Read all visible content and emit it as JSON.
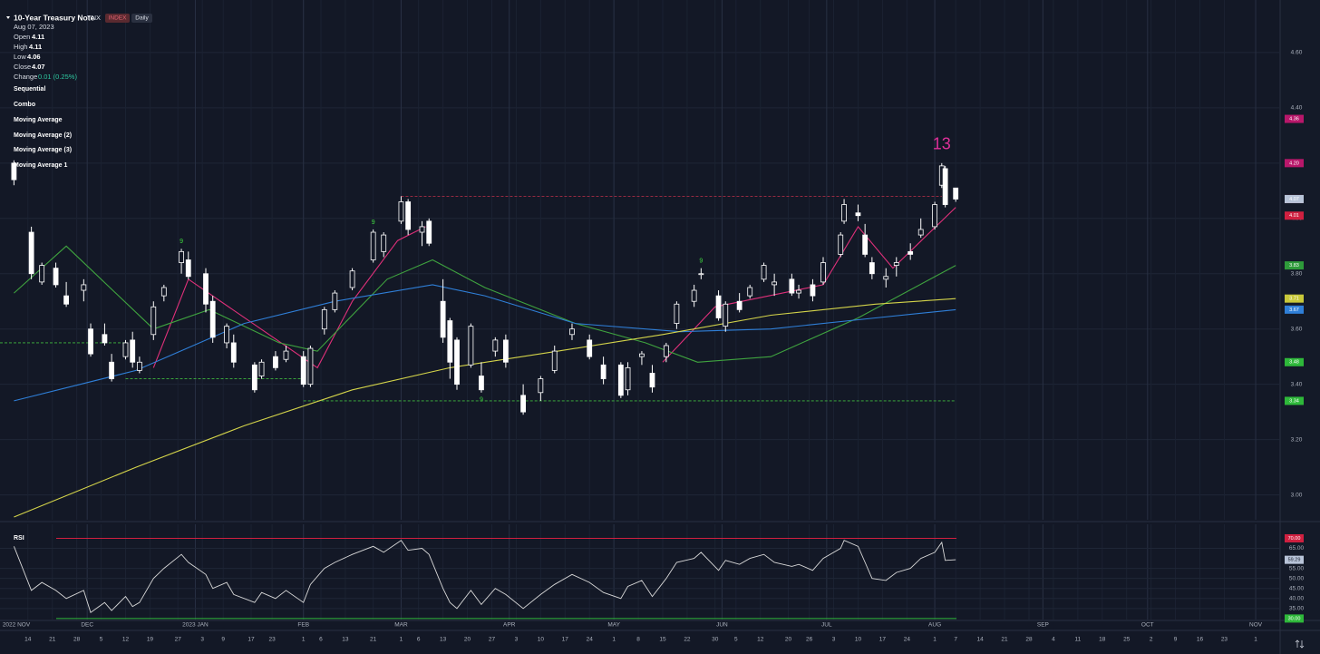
{
  "chart_data": {
    "type": "candlestick",
    "title": "10-Year Treasury Note",
    "symbol": "TNX",
    "badges": [
      "INDEX",
      "Daily"
    ],
    "legend": {
      "date": "Aug 07, 2023",
      "fields": [
        "Open",
        "High",
        "Low",
        "Close",
        "Change"
      ],
      "change": "0.01 (0.25%)"
    },
    "indicators": [
      "Sequential",
      "Combo",
      "Moving Average",
      "Moving Average (2)",
      "Moving Average (3)",
      "Moving Average 1"
    ],
    "xlim": [
      "2022-11-06",
      "2023-11-08"
    ],
    "ylim": [
      2.91,
      4.79
    ],
    "yticks": [
      {
        "value": 3.0,
        "label": "3.00"
      },
      {
        "value": 3.2,
        "label": "3.20"
      },
      {
        "value": 3.4,
        "label": "3.40"
      },
      {
        "value": 3.6,
        "label": "3.60"
      },
      {
        "value": 3.8,
        "label": "3.80"
      },
      {
        "value": 4.0,
        "label": "4.00"
      },
      {
        "value": 4.2,
        "label": "4.20"
      },
      {
        "value": 4.4,
        "label": "4.40"
      },
      {
        "value": 4.6,
        "label": "4.60"
      }
    ],
    "xticks": [
      {
        "value": "2022-11-14",
        "label": "14"
      },
      {
        "value": "2022-11-21",
        "label": "21"
      },
      {
        "value": "2022-11-28",
        "label": "28"
      },
      {
        "value": "2022-12-05",
        "label": "5"
      },
      {
        "value": "2022-12-12",
        "label": "12"
      },
      {
        "value": "2022-12-19",
        "label": "19"
      },
      {
        "value": "2022-12-27",
        "label": "27"
      },
      {
        "value": "2023-01-03",
        "label": "3"
      },
      {
        "value": "2023-01-09",
        "label": "9"
      },
      {
        "value": "2023-01-17",
        "label": "17"
      },
      {
        "value": "2023-01-23",
        "label": "23"
      },
      {
        "value": "2023-02-01",
        "label": "1"
      },
      {
        "value": "2023-02-06",
        "label": "6"
      },
      {
        "value": "2023-02-13",
        "label": "13"
      },
      {
        "value": "2023-02-21",
        "label": "21"
      },
      {
        "value": "2023-03-01",
        "label": "1"
      },
      {
        "value": "2023-03-06",
        "label": "6"
      },
      {
        "value": "2023-03-13",
        "label": "13"
      },
      {
        "value": "2023-03-20",
        "label": "20"
      },
      {
        "value": "2023-03-27",
        "label": "27"
      },
      {
        "value": "2023-04-03",
        "label": "3"
      },
      {
        "value": "2023-04-10",
        "label": "10"
      },
      {
        "value": "2023-04-17",
        "label": "17"
      },
      {
        "value": "2023-04-24",
        "label": "24"
      },
      {
        "value": "2023-05-01",
        "label": "1"
      },
      {
        "value": "2023-05-08",
        "label": "8"
      },
      {
        "value": "2023-05-15",
        "label": "15"
      },
      {
        "value": "2023-05-22",
        "label": "22"
      },
      {
        "value": "2023-05-30",
        "label": "30"
      },
      {
        "value": "2023-06-05",
        "label": "5"
      },
      {
        "value": "2023-06-12",
        "label": "12"
      },
      {
        "value": "2023-06-20",
        "label": "20"
      },
      {
        "value": "2023-06-26",
        "label": "26"
      },
      {
        "value": "2023-07-03",
        "label": "3"
      },
      {
        "value": "2023-07-10",
        "label": "10"
      },
      {
        "value": "2023-07-17",
        "label": "17"
      },
      {
        "value": "2023-07-24",
        "label": "24"
      },
      {
        "value": "2023-08-01",
        "label": "1"
      },
      {
        "value": "2023-08-07",
        "label": "7"
      },
      {
        "value": "2023-08-14",
        "label": "14"
      },
      {
        "value": "2023-08-21",
        "label": "21"
      },
      {
        "value": "2023-08-28",
        "label": "28"
      },
      {
        "value": "2023-09-04",
        "label": "4"
      },
      {
        "value": "2023-09-11",
        "label": "11"
      },
      {
        "value": "2023-09-18",
        "label": "18"
      },
      {
        "value": "2023-09-25",
        "label": "25"
      },
      {
        "value": "2023-10-02",
        "label": "2"
      },
      {
        "value": "2023-10-09",
        "label": "9"
      },
      {
        "value": "2023-10-16",
        "label": "16"
      },
      {
        "value": "2023-10-23",
        "label": "23"
      },
      {
        "value": "2023-11-01",
        "label": "1"
      }
    ],
    "month_ticks": [
      {
        "value": "2022-11-01",
        "label": "2022 NOV"
      },
      {
        "value": "2022-12-01",
        "label": "DEC"
      },
      {
        "value": "2023-01-01",
        "label": "2023 JAN"
      },
      {
        "value": "2023-02-01",
        "label": "FEB"
      },
      {
        "value": "2023-03-01",
        "label": "MAR"
      },
      {
        "value": "2023-04-01",
        "label": "APR"
      },
      {
        "value": "2023-05-01",
        "label": "MAY"
      },
      {
        "value": "2023-06-01",
        "label": "JUN"
      },
      {
        "value": "2023-07-01",
        "label": "JUL"
      },
      {
        "value": "2023-08-01",
        "label": "AUG"
      },
      {
        "value": "2023-09-01",
        "label": "SEP"
      },
      {
        "value": "2023-10-01",
        "label": "OCT"
      },
      {
        "value": "2023-11-01",
        "label": "NOV"
      }
    ],
    "grid": true,
    "candles": {
      "up_color": "#ffffff",
      "down_color": "#ffffff",
      "x": [
        "2022-11-10",
        "2022-11-15",
        "2022-11-18",
        "2022-11-22",
        "2022-11-25",
        "2022-11-30",
        "2022-12-02",
        "2022-12-06",
        "2022-12-08",
        "2022-12-12",
        "2022-12-14",
        "2022-12-16",
        "2022-12-20",
        "2022-12-23",
        "2022-12-28",
        "2022-12-30",
        "2023-01-04",
        "2023-01-06",
        "2023-01-10",
        "2023-01-12",
        "2023-01-18",
        "2023-01-20",
        "2023-01-24",
        "2023-01-27",
        "2023-02-01",
        "2023-02-03",
        "2023-02-07",
        "2023-02-10",
        "2023-02-15",
        "2023-02-21",
        "2023-02-24",
        "2023-03-01",
        "2023-03-03",
        "2023-03-07",
        "2023-03-09",
        "2023-03-13",
        "2023-03-15",
        "2023-03-17",
        "2023-03-21",
        "2023-03-24",
        "2023-03-28",
        "2023-03-31",
        "2023-04-05",
        "2023-04-10",
        "2023-04-14",
        "2023-04-19",
        "2023-04-24",
        "2023-04-28",
        "2023-05-03",
        "2023-05-05",
        "2023-05-09",
        "2023-05-12",
        "2023-05-16",
        "2023-05-19",
        "2023-05-24",
        "2023-05-26",
        "2023-05-31",
        "2023-06-02",
        "2023-06-06",
        "2023-06-09",
        "2023-06-13",
        "2023-06-16",
        "2023-06-21",
        "2023-06-23",
        "2023-06-27",
        "2023-06-30",
        "2023-07-05",
        "2023-07-06",
        "2023-07-10",
        "2023-07-12",
        "2023-07-14",
        "2023-07-18",
        "2023-07-21",
        "2023-07-25",
        "2023-07-28",
        "2023-08-01",
        "2023-08-03",
        "2023-08-04",
        "2023-08-07"
      ],
      "open": [
        4.2,
        3.95,
        3.77,
        3.82,
        3.72,
        3.74,
        3.6,
        3.58,
        3.48,
        3.5,
        3.56,
        3.45,
        3.58,
        3.72,
        3.84,
        3.85,
        3.8,
        3.7,
        3.55,
        3.55,
        3.47,
        3.43,
        3.5,
        3.49,
        3.5,
        3.4,
        3.6,
        3.67,
        3.75,
        3.85,
        3.88,
        3.99,
        4.06,
        3.95,
        3.99,
        3.7,
        3.63,
        3.56,
        3.47,
        3.43,
        3.52,
        3.56,
        3.36,
        3.37,
        3.45,
        3.58,
        3.56,
        3.47,
        3.47,
        3.38,
        3.5,
        3.44,
        3.5,
        3.62,
        3.7,
        3.8,
        3.72,
        3.61,
        3.7,
        3.72,
        3.78,
        3.76,
        3.78,
        3.73,
        3.76,
        3.77,
        3.87,
        3.99,
        4.02,
        3.94,
        3.84,
        3.78,
        3.83,
        3.88,
        3.94,
        3.97,
        4.12,
        4.18,
        4.11
      ],
      "high": [
        4.21,
        3.97,
        3.84,
        3.84,
        3.77,
        3.78,
        3.62,
        3.62,
        3.51,
        3.56,
        3.59,
        3.5,
        3.7,
        3.76,
        3.89,
        3.88,
        3.82,
        3.72,
        3.62,
        3.58,
        3.48,
        3.49,
        3.52,
        3.54,
        3.52,
        3.54,
        3.68,
        3.74,
        3.82,
        3.96,
        3.95,
        4.08,
        4.07,
        3.99,
        4.0,
        3.78,
        3.64,
        3.57,
        3.62,
        3.48,
        3.57,
        3.58,
        3.4,
        3.43,
        3.54,
        3.62,
        3.58,
        3.5,
        3.48,
        3.48,
        3.52,
        3.47,
        3.55,
        3.7,
        3.76,
        3.82,
        3.74,
        3.7,
        3.73,
        3.76,
        3.84,
        3.8,
        3.8,
        3.76,
        3.78,
        3.86,
        3.95,
        4.07,
        4.05,
        3.98,
        3.86,
        3.82,
        3.86,
        3.91,
        4.0,
        4.06,
        4.2,
        4.19,
        4.11
      ],
      "low": [
        4.12,
        3.78,
        3.76,
        3.75,
        3.68,
        3.7,
        3.5,
        3.54,
        3.41,
        3.49,
        3.46,
        3.44,
        3.56,
        3.7,
        3.8,
        3.78,
        3.66,
        3.55,
        3.53,
        3.46,
        3.37,
        3.42,
        3.45,
        3.48,
        3.39,
        3.39,
        3.58,
        3.66,
        3.74,
        3.84,
        3.86,
        3.98,
        3.94,
        3.9,
        3.9,
        3.55,
        3.42,
        3.38,
        3.46,
        3.37,
        3.5,
        3.46,
        3.29,
        3.34,
        3.44,
        3.56,
        3.49,
        3.4,
        3.35,
        3.36,
        3.47,
        3.37,
        3.48,
        3.6,
        3.68,
        3.78,
        3.63,
        3.59,
        3.66,
        3.71,
        3.77,
        3.72,
        3.72,
        3.71,
        3.7,
        3.76,
        3.86,
        3.98,
        3.99,
        3.86,
        3.78,
        3.75,
        3.79,
        3.85,
        3.93,
        3.96,
        4.11,
        4.04,
        4.06
      ],
      "close": [
        4.14,
        3.8,
        3.83,
        3.76,
        3.69,
        3.76,
        3.51,
        3.55,
        3.42,
        3.55,
        3.48,
        3.48,
        3.68,
        3.75,
        3.88,
        3.79,
        3.69,
        3.57,
        3.61,
        3.48,
        3.38,
        3.48,
        3.46,
        3.52,
        3.4,
        3.53,
        3.67,
        3.73,
        3.81,
        3.95,
        3.94,
        4.06,
        3.96,
        3.97,
        3.91,
        3.57,
        3.48,
        3.4,
        3.61,
        3.38,
        3.56,
        3.48,
        3.3,
        3.42,
        3.52,
        3.6,
        3.5,
        3.42,
        3.36,
        3.46,
        3.51,
        3.39,
        3.54,
        3.69,
        3.74,
        3.8,
        3.64,
        3.69,
        3.67,
        3.75,
        3.83,
        3.77,
        3.73,
        3.74,
        3.72,
        3.84,
        3.94,
        4.05,
        4.01,
        3.87,
        3.8,
        3.79,
        3.84,
        3.87,
        3.96,
        4.05,
        4.19,
        4.05,
        4.07
      ]
    },
    "series": [
      {
        "name": "Moving Average",
        "color": "#e0307a",
        "x": [
          "2022-12-20",
          "2022-12-30",
          "2023-02-05",
          "2023-02-15",
          "2023-02-28",
          "2023-03-08",
          "2023-04-15",
          "2023-05-15",
          "2023-05-30",
          "2023-06-30",
          "2023-07-10",
          "2023-07-20",
          "2023-08-07"
        ],
        "values": [
          3.46,
          3.78,
          3.46,
          3.7,
          3.92,
          3.97,
          null,
          3.48,
          3.68,
          3.76,
          3.97,
          3.82,
          4.04
        ]
      },
      {
        "name": "Moving Average (2)",
        "color": "#3fa33f",
        "x": [
          "2022-11-10",
          "2022-11-25",
          "2022-12-20",
          "2023-01-05",
          "2023-01-25",
          "2023-02-05",
          "2023-02-25",
          "2023-03-10",
          "2023-03-25",
          "2023-04-20",
          "2023-05-10",
          "2023-05-25",
          "2023-06-15",
          "2023-07-10",
          "2023-08-07"
        ],
        "values": [
          3.73,
          3.9,
          3.6,
          3.67,
          3.55,
          3.52,
          3.78,
          3.85,
          3.75,
          3.62,
          3.55,
          3.48,
          3.5,
          3.64,
          3.83
        ]
      },
      {
        "name": "Moving Average (3)",
        "color": "#2f7fd8",
        "x": [
          "2022-11-10",
          "2022-12-15",
          "2023-01-15",
          "2023-02-10",
          "2023-03-10",
          "2023-03-25",
          "2023-04-20",
          "2023-05-20",
          "2023-06-15",
          "2023-07-15",
          "2023-08-07"
        ],
        "values": [
          3.34,
          3.45,
          3.62,
          3.7,
          3.76,
          3.72,
          3.62,
          3.59,
          3.6,
          3.64,
          3.67
        ]
      },
      {
        "name": "Moving Average 1",
        "color": "#d4d44a",
        "x": [
          "2022-11-10",
          "2022-12-15",
          "2023-01-15",
          "2023-02-15",
          "2023-03-15",
          "2023-04-15",
          "2023-05-15",
          "2023-06-15",
          "2023-07-15",
          "2023-08-07"
        ],
        "values": [
          2.92,
          3.1,
          3.25,
          3.38,
          3.46,
          3.52,
          3.58,
          3.65,
          3.69,
          3.71
        ]
      }
    ],
    "levels": [
      {
        "value": 4.08,
        "start": "2023-03-01",
        "end": "2023-08-03",
        "color": "#c0304a"
      },
      {
        "value": 3.55,
        "start": "2022-11-06",
        "end": "2022-12-12",
        "color": "#3fb83f"
      },
      {
        "value": 3.42,
        "start": "2022-12-12",
        "end": "2023-02-01",
        "color": "#3fb83f"
      },
      {
        "value": 3.34,
        "start": "2023-02-01",
        "end": "2023-08-07",
        "color": "#3fb83f"
      }
    ],
    "annotations": [
      {
        "label": "13",
        "x": "2023-08-03",
        "position": "above",
        "size": "large",
        "color": "#e0309a"
      },
      {
        "label": "9",
        "x": "2022-12-28",
        "position": "above",
        "size": "small",
        "color": "#3fd83f"
      },
      {
        "label": "9",
        "x": "2023-05-26",
        "position": "above",
        "size": "small",
        "color": "#3fd83f"
      },
      {
        "label": "9",
        "x": "2023-03-24",
        "position": "below",
        "size": "small",
        "color": "#3fd83f"
      },
      {
        "label": "9",
        "x": "2023-02-21",
        "position": "above",
        "size": "small",
        "color": "#3fd83f"
      }
    ],
    "price_labels": [
      {
        "value": 4.36,
        "color": "#b8176a"
      },
      {
        "value": 4.2,
        "label": "4.20",
        "color": "#b8176a"
      },
      {
        "value": 4.07,
        "color": "#d02040"
      },
      {
        "value": 4.07,
        "color": "#b8c4d8"
      },
      {
        "value": 4.01,
        "color": "#d02040"
      },
      {
        "value": 3.83,
        "color": "#2e9a3a"
      },
      {
        "value": 3.71,
        "color": "#c8c83a"
      },
      {
        "value": 3.67,
        "color": "#2f7fd8"
      },
      {
        "value": 3.48,
        "color": "#2eb83a"
      },
      {
        "value": 3.34,
        "color": "#2eb83a"
      }
    ],
    "rsi": {
      "title": "RSI",
      "color": "#d8d8d8",
      "ylim": [
        29.5,
        77
      ],
      "yticks": [
        {
          "value": 35,
          "label": "35.00"
        },
        {
          "value": 40,
          "label": "40.00"
        },
        {
          "value": 45,
          "label": "45.00"
        },
        {
          "value": 50,
          "label": "50.00"
        },
        {
          "value": 55,
          "label": "55.00"
        },
        {
          "value": 65,
          "label": "65.00"
        }
      ],
      "upper": {
        "value": 70,
        "label": "70.00",
        "color": "#d02040"
      },
      "lower": {
        "value": 30,
        "label": "30.00",
        "color": "#2eb83a"
      },
      "last": {
        "value": 59.29,
        "color": "#b8c4d8"
      },
      "values": [
        66,
        44,
        48,
        44,
        40,
        44,
        33,
        38,
        34,
        41,
        36,
        38,
        50,
        55,
        62,
        58,
        52,
        45,
        48,
        42,
        38,
        43,
        40,
        44,
        38,
        47,
        55,
        58,
        62,
        66,
        63,
        69,
        64,
        65,
        62,
        45,
        38,
        35,
        44,
        37,
        45,
        42,
        35,
        42,
        47,
        52,
        48,
        43,
        40,
        46,
        49,
        41,
        50,
        58,
        60,
        63,
        54,
        59,
        57,
        60,
        62,
        58,
        56,
        57,
        54,
        60,
        65,
        69,
        66,
        58,
        50,
        49,
        53,
        55,
        60,
        63,
        68,
        59,
        59.29
      ]
    }
  }
}
